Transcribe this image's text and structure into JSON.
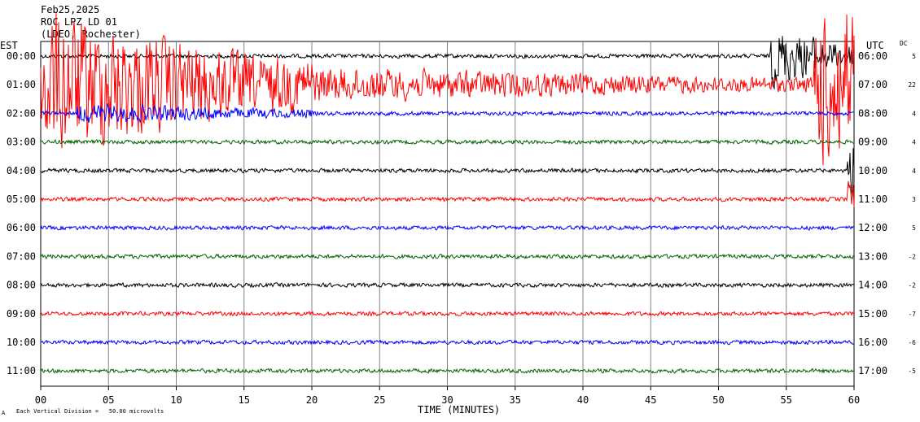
{
  "header": {
    "date": "Feb25,2025",
    "station": "ROC LPZ LD 01",
    "network": "(LDEO, Rochester)"
  },
  "left_timezone": "EST",
  "right_timezone": "UTC",
  "dc_header": "DC",
  "footer": {
    "scale_note": "Each Vertical Division =   50.00 microvolts",
    "scale_marker": "A"
  },
  "chart_data": {
    "type": "line",
    "title": "Feb25,2025",
    "xlabel": "TIME (MINUTES)",
    "ylabel": "",
    "xlim": [
      0,
      60
    ],
    "x_ticks": [
      0,
      5,
      10,
      15,
      20,
      25,
      30,
      35,
      40,
      45,
      50,
      55,
      60
    ],
    "x_tick_labels": [
      "00",
      "05",
      "10",
      "15",
      "20",
      "25",
      "30",
      "35",
      "40",
      "45",
      "50",
      "55",
      "60"
    ],
    "grid": true,
    "trace_colors": [
      "#000000",
      "#ff0000",
      "#0000ff",
      "#006400"
    ],
    "rows": [
      {
        "left": "00:00",
        "right": "06:00",
        "dc": "5",
        "events": [
          {
            "start": 53.8,
            "end": 60,
            "amp": 2.2
          }
        ]
      },
      {
        "left": "01:00",
        "right": "07:00",
        "dc": "22",
        "events": [
          {
            "start": 0,
            "end": 20,
            "amp": 5.5
          },
          {
            "start": 20,
            "end": 57,
            "amp": 1.2
          },
          {
            "start": 57,
            "end": 60,
            "amp": 6
          }
        ]
      },
      {
        "left": "02:00",
        "right": "08:00",
        "dc": "4",
        "events": [
          {
            "start": 2.7,
            "end": 20,
            "amp": 0.6
          }
        ]
      },
      {
        "left": "03:00",
        "right": "09:00",
        "dc": "4",
        "events": []
      },
      {
        "left": "04:00",
        "right": "10:00",
        "dc": "4",
        "events": [
          {
            "start": 59.5,
            "end": 60,
            "amp": 2.5
          }
        ]
      },
      {
        "left": "05:00",
        "right": "11:00",
        "dc": "3",
        "events": [
          {
            "start": 59.5,
            "end": 60,
            "amp": 1.3
          }
        ]
      },
      {
        "left": "06:00",
        "right": "12:00",
        "dc": "5",
        "events": []
      },
      {
        "left": "07:00",
        "right": "13:00",
        "dc": "-2",
        "events": []
      },
      {
        "left": "08:00",
        "right": "14:00",
        "dc": "-2",
        "events": []
      },
      {
        "left": "09:00",
        "right": "15:00",
        "dc": "-7",
        "events": []
      },
      {
        "left": "10:00",
        "right": "16:00",
        "dc": "-6",
        "events": []
      },
      {
        "left": "11:00",
        "right": "17:00",
        "dc": "-5",
        "events": []
      }
    ]
  }
}
